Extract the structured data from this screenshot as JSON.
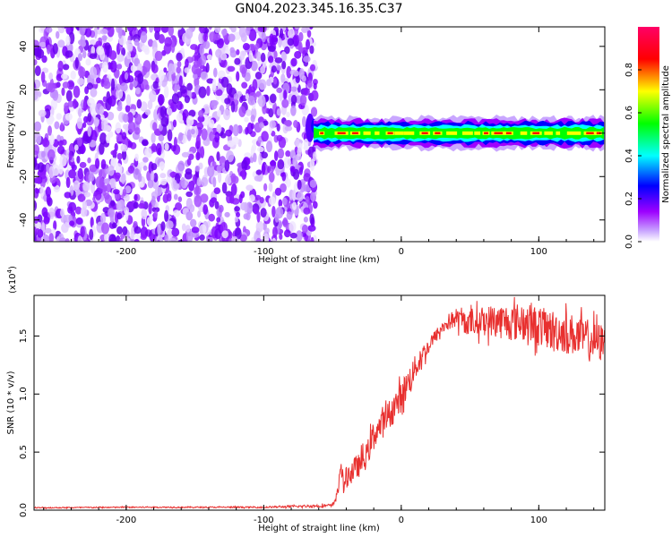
{
  "title": "GN04.2023.345.16.35.C37",
  "chart_data": [
    {
      "type": "heatmap",
      "xlabel": "Height of straight line (km)",
      "ylabel": "Frequency (Hz)",
      "xlim": [
        -267,
        148
      ],
      "ylim": [
        -50,
        49
      ],
      "xticks": [
        -200,
        -100,
        0,
        100
      ],
      "xticklabels": [
        "-200",
        "-100",
        "0",
        "100"
      ],
      "yticks": [
        -40,
        -20,
        0,
        20,
        40
      ],
      "yticklabels": [
        "-40",
        "-20",
        "0",
        "20",
        "40"
      ],
      "noise_region_x": [
        -267,
        -65
      ],
      "signal_band": {
        "x": [
          -65,
          148
        ],
        "center_freq": 0,
        "half_width_hz": 3
      },
      "colorbar": {
        "label": "Normalized spectral amplitude",
        "range": [
          0,
          1
        ],
        "ticks": [
          0.0,
          0.2,
          0.4,
          0.6,
          0.8
        ],
        "ticklabels": [
          "0.0",
          "0.2",
          "0.4",
          "0.6",
          "0.8"
        ],
        "colors": [
          "#ffffff",
          "#9d00ff",
          "#0000ff",
          "#00ffff",
          "#00ff00",
          "#ffff00",
          "#ff0000",
          "#ff0066"
        ]
      },
      "grid": false
    },
    {
      "type": "line",
      "xlabel": "Height of straight line (km)",
      "ylabel": "SNR (10 * v/v)",
      "multiplier_label": "(x10",
      "multiplier_exp": "4",
      "multiplier_close": ")",
      "xlim": [
        -267,
        148
      ],
      "ylim": [
        0,
        18500
      ],
      "xticks": [
        -200,
        -100,
        0,
        100
      ],
      "xticklabels": [
        "-200",
        "-100",
        "0",
        "100"
      ],
      "yticks": [
        0,
        5000,
        10000,
        15000
      ],
      "yticklabels": [
        "0.0",
        "0.5",
        "1.0",
        "1.5"
      ],
      "color": "#e8302f",
      "x": [
        -267,
        -200,
        -100,
        -50,
        -46,
        -44,
        -42,
        -40,
        -35,
        -30,
        -25,
        -20,
        -15,
        -10,
        -5,
        0,
        5,
        10,
        15,
        20,
        25,
        30,
        35,
        40,
        50,
        60,
        70,
        80,
        90,
        100,
        110,
        120,
        130,
        140,
        148
      ],
      "values": [
        200,
        250,
        250,
        400,
        1500,
        4300,
        1800,
        2800,
        3500,
        3900,
        4700,
        6600,
        7200,
        8000,
        8900,
        9800,
        11000,
        12200,
        13300,
        14100,
        15000,
        15700,
        16300,
        16500,
        16100,
        16300,
        16300,
        16200,
        16200,
        15800,
        15500,
        15300,
        14900,
        14600,
        14300
      ],
      "noise_amplitude": [
        50,
        50,
        60,
        150,
        500,
        800,
        500,
        900,
        1000,
        1000,
        1100,
        1200,
        1200,
        1300,
        1300,
        1300,
        1300,
        1100,
        900,
        700,
        600,
        600,
        700,
        900,
        1100,
        1300,
        1500,
        1600,
        1700,
        1700,
        1800,
        1800,
        1800,
        1700,
        1700
      ],
      "grid": false
    }
  ]
}
